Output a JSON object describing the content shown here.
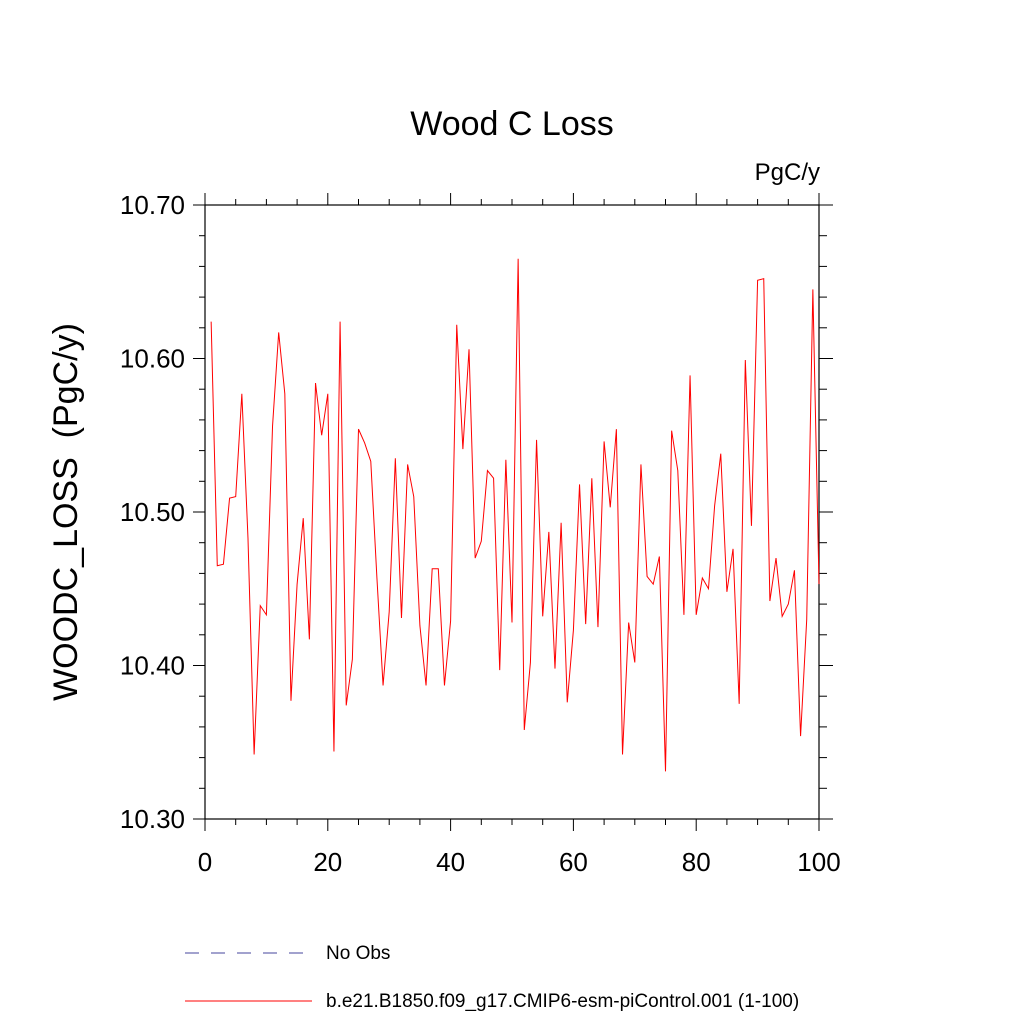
{
  "chart_data": {
    "type": "line",
    "title": "Wood C Loss",
    "units_label": "PgC/y",
    "ylabel": "WOODC_LOSS  (PgC/y)",
    "xlabel": "",
    "xlim": [
      0,
      100
    ],
    "ylim": [
      10.3,
      10.7
    ],
    "x_ticks": [
      0,
      20,
      40,
      60,
      80,
      100
    ],
    "x_tick_labels": [
      "0",
      "20",
      "40",
      "60",
      "80",
      "100"
    ],
    "y_ticks": [
      10.3,
      10.4,
      10.5,
      10.6,
      10.7
    ],
    "y_tick_labels": [
      "10.30",
      "10.40",
      "10.50",
      "10.60",
      "10.70"
    ],
    "grid": false,
    "legend_position": "bottom",
    "legend": [
      {
        "label": "No Obs",
        "style": "dashed",
        "color": "#6a6ab0"
      },
      {
        "label": "b.e21.B1850.f09_g17.CMIP6-esm-piControl.001 (1-100)",
        "style": "solid",
        "color": "#ff0000"
      }
    ],
    "series": [
      {
        "name": "b.e21.B1850.f09_g17.CMIP6-esm-piControl.001 (1-100)",
        "color": "#ff0000",
        "x": [
          1,
          2,
          3,
          4,
          5,
          6,
          7,
          8,
          9,
          10,
          11,
          12,
          13,
          14,
          15,
          16,
          17,
          18,
          19,
          20,
          21,
          22,
          23,
          24,
          25,
          26,
          27,
          28,
          29,
          30,
          31,
          32,
          33,
          34,
          35,
          36,
          37,
          38,
          39,
          40,
          41,
          42,
          43,
          44,
          45,
          46,
          47,
          48,
          49,
          50,
          51,
          52,
          53,
          54,
          55,
          56,
          57,
          58,
          59,
          60,
          61,
          62,
          63,
          64,
          65,
          66,
          67,
          68,
          69,
          70,
          71,
          72,
          73,
          74,
          75,
          76,
          77,
          78,
          79,
          80,
          81,
          82,
          83,
          84,
          85,
          86,
          87,
          88,
          89,
          90,
          91,
          92,
          93,
          94,
          95,
          96,
          97,
          98,
          99,
          100
        ],
        "values": [
          10.624,
          10.465,
          10.466,
          10.509,
          10.51,
          10.577,
          10.483,
          10.342,
          10.439,
          10.433,
          10.556,
          10.617,
          10.577,
          10.377,
          10.453,
          10.496,
          10.417,
          10.584,
          10.55,
          10.577,
          10.344,
          10.624,
          10.374,
          10.404,
          10.554,
          10.545,
          10.533,
          10.457,
          10.387,
          10.435,
          10.535,
          10.431,
          10.531,
          10.51,
          10.426,
          10.387,
          10.463,
          10.463,
          10.387,
          10.429,
          10.622,
          10.541,
          10.606,
          10.47,
          10.481,
          10.527,
          10.522,
          10.397,
          10.534,
          10.428,
          10.665,
          10.358,
          10.402,
          10.547,
          10.432,
          10.487,
          10.398,
          10.493,
          10.376,
          10.423,
          10.518,
          10.427,
          10.522,
          10.425,
          10.546,
          10.503,
          10.554,
          10.342,
          10.428,
          10.402,
          10.531,
          10.458,
          10.453,
          10.471,
          10.331,
          10.553,
          10.527,
          10.433,
          10.589,
          10.433,
          10.457,
          10.45,
          10.504,
          10.538,
          10.448,
          10.476,
          10.375,
          10.599,
          10.491,
          10.651,
          10.652,
          10.442,
          10.47,
          10.432,
          10.44,
          10.462,
          10.354,
          10.43,
          10.645,
          10.453
        ]
      }
    ]
  }
}
